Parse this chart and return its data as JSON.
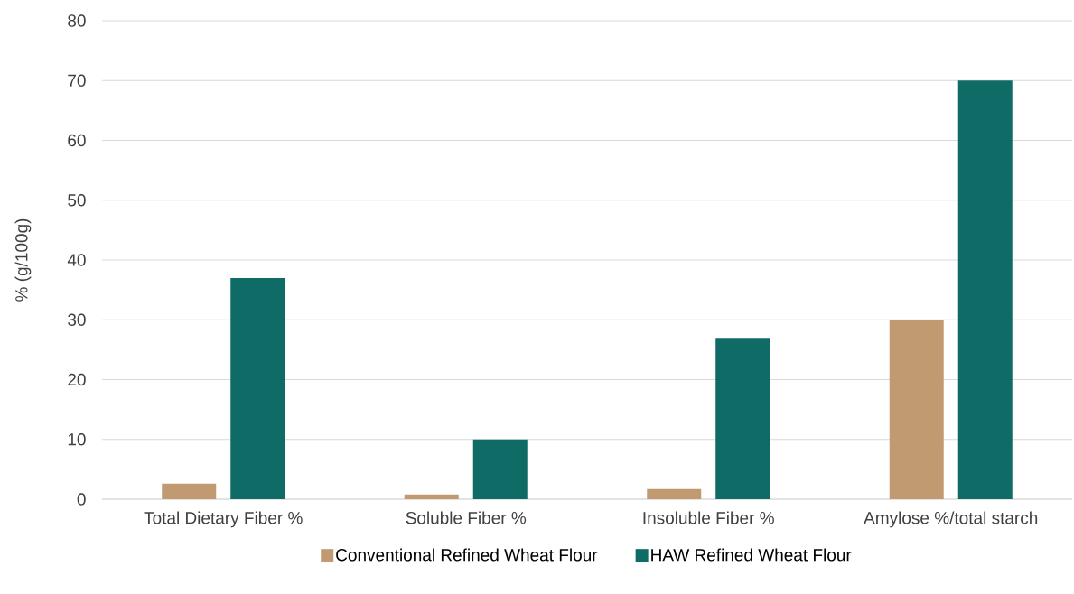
{
  "chart_data": {
    "type": "bar",
    "ylabel": "% (g/100g)",
    "categories": [
      "Total Dietary Fiber %",
      "Soluble Fiber %",
      "Insoluble Fiber %",
      "Amylose %/total starch"
    ],
    "series": [
      {
        "name": "Conventional Refined Wheat Flour",
        "color": "#c19a72",
        "values": [
          2.6,
          0.8,
          1.7,
          30
        ]
      },
      {
        "name": "HAW Refined Wheat Flour",
        "color": "#0f6b66",
        "values": [
          37,
          10,
          27,
          70
        ]
      }
    ],
    "ylim": [
      0,
      80
    ],
    "yticks": [
      0,
      10,
      20,
      30,
      40,
      50,
      60,
      70,
      80
    ],
    "grid": "y",
    "legend": "bottom"
  }
}
